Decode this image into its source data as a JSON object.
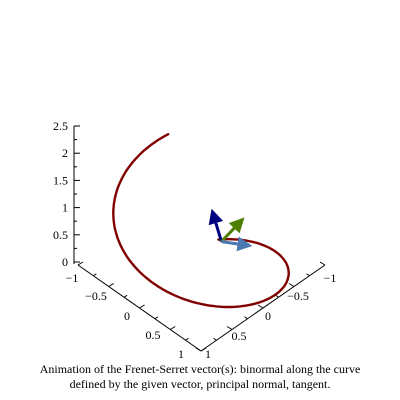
{
  "chart_data": {
    "type": "line",
    "plot_kind": "3d-space-curve-animation-frame",
    "axes": {
      "z": {
        "ticks": [
          "0",
          "0.5",
          "1",
          "1.5",
          "2",
          "2.5"
        ],
        "range": [
          0,
          2.5
        ]
      },
      "x": {
        "ticks": [
          "−1",
          "−0.5",
          "0",
          "0.5",
          "1"
        ],
        "range": [
          -1,
          1
        ]
      },
      "y": {
        "ticks": [
          "−1",
          "−0.5",
          "0",
          "0.5",
          "1"
        ],
        "range": [
          -1,
          1
        ]
      }
    },
    "series": [
      {
        "kind": "helix",
        "parametric": {
          "x": "cos(t)",
          "y": "sin(t)",
          "z": "t/(2*pi)*2.2"
        },
        "t_range": [
          0.2,
          5.9
        ],
        "color": "#800000"
      }
    ],
    "vectors": [
      {
        "kind": "binormal",
        "color": "#000080",
        "direction": [
          0.35,
          0.0,
          0.55
        ]
      },
      {
        "kind": "principal normal",
        "color": "#4f7f00",
        "direction": [
          -0.55,
          0.0,
          0.35
        ]
      },
      {
        "kind": "tangent",
        "color": "#4a78b0",
        "direction": [
          0.0,
          -0.45,
          0.0
        ]
      }
    ],
    "vector_origin": {
      "t": 0.2
    },
    "grid": false,
    "legend": "none"
  },
  "caption": {
    "line1": "Animation of the Frenet-Serret vector(s): binormal along the curve",
    "line2": "defined by the given vector, principal normal, tangent."
  }
}
